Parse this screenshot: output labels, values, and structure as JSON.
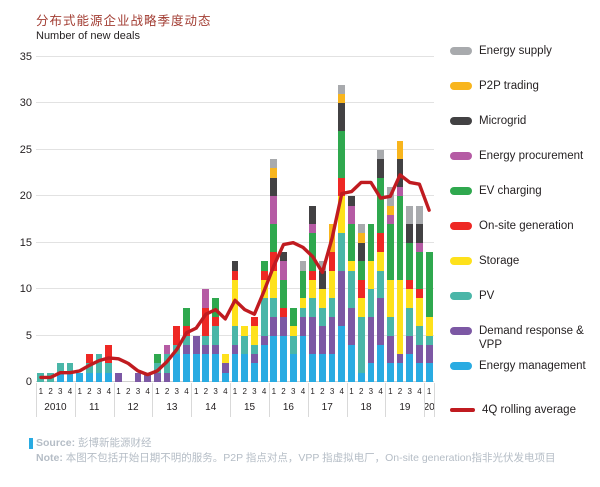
{
  "title": "分布式能源企业战略季度动态",
  "y_axis_title": "Number of new deals",
  "source": {
    "label": "Source:",
    "text": " 彭博新能源财经"
  },
  "note": {
    "label": "Note:",
    "text": " 本图不包括开始日期不明的服务。P2P 指点对点，VPP 指虚拟电厂，On-site generation指非光伏发电项目"
  },
  "legend": [
    {
      "id": "energy_supply",
      "label": "Energy supply",
      "color": "#a8aaad",
      "type": "box"
    },
    {
      "id": "p2p_trading",
      "label": "P2P trading",
      "color": "#f8b51d",
      "type": "box"
    },
    {
      "id": "microgrid",
      "label": "Microgrid",
      "color": "#424143",
      "type": "box"
    },
    {
      "id": "energy_procurement",
      "label": "Energy procurement",
      "color": "#b55ba4",
      "type": "box"
    },
    {
      "id": "ev_charging",
      "label": "EV charging",
      "color": "#2fa84e",
      "type": "box"
    },
    {
      "id": "onsite_generation",
      "label": "On-site generation",
      "color": "#ee2824",
      "type": "box"
    },
    {
      "id": "storage",
      "label": "Storage",
      "color": "#fee11b",
      "type": "box"
    },
    {
      "id": "pv",
      "label": "PV",
      "color": "#4ab6a8",
      "type": "box"
    },
    {
      "id": "demand_response_vpp",
      "label": "Demand response & VPP",
      "color": "#7c58a4",
      "type": "box"
    },
    {
      "id": "energy_management",
      "label": "Energy management",
      "color": "#29abe2",
      "type": "box"
    },
    {
      "id": "rolling_average",
      "label": "4Q rolling average",
      "color": "#c01b20",
      "type": "line"
    }
  ],
  "chart_data": {
    "type": "bar",
    "subtype": "stacked-with-line",
    "ylim": [
      0,
      35
    ],
    "yticks": [
      0,
      5,
      10,
      15,
      20,
      25,
      30,
      35
    ],
    "grid": "horizontal",
    "legend_position": "right",
    "quarter_tick_labels": [
      "1",
      "2",
      "3",
      "4"
    ],
    "x_groups": [
      {
        "label": "2010",
        "quarters": 4
      },
      {
        "label": "11",
        "quarters": 4
      },
      {
        "label": "12",
        "quarters": 4
      },
      {
        "label": "13",
        "quarters": 4
      },
      {
        "label": "14",
        "quarters": 4
      },
      {
        "label": "15",
        "quarters": 4
      },
      {
        "label": "16",
        "quarters": 4
      },
      {
        "label": "17",
        "quarters": 4
      },
      {
        "label": "18",
        "quarters": 4
      },
      {
        "label": "19",
        "quarters": 4
      },
      {
        "label": "20",
        "quarters": 1
      }
    ],
    "series": [
      {
        "id": "energy_management",
        "name": "Energy management",
        "color": "#29abe2",
        "values": [
          0,
          0,
          1,
          1,
          1,
          1,
          1,
          1,
          0,
          0,
          0,
          0,
          0,
          0,
          3,
          3,
          3,
          3,
          3,
          1,
          3,
          3,
          2,
          4,
          5,
          5,
          3,
          5,
          3,
          3,
          3,
          6,
          4,
          1,
          2,
          4,
          2,
          2,
          3,
          2,
          2
        ]
      },
      {
        "id": "demand_response_vpp",
        "name": "Demand response & VPP",
        "color": "#7c58a4",
        "values": [
          0,
          0,
          0,
          0,
          0,
          0,
          0,
          0,
          1,
          0,
          1,
          1,
          1,
          1,
          0,
          1,
          2,
          1,
          1,
          1,
          1,
          0,
          1,
          1,
          2,
          2,
          0,
          2,
          4,
          3,
          4,
          6,
          4,
          0,
          5,
          5,
          3,
          1,
          2,
          2,
          2
        ]
      },
      {
        "id": "pv",
        "name": "PV",
        "color": "#4ab6a8",
        "values": [
          1,
          1,
          1,
          1,
          0,
          1,
          2,
          1,
          0,
          0,
          0,
          0,
          1,
          2,
          1,
          1,
          0,
          1,
          2,
          0,
          2,
          2,
          1,
          4,
          2,
          0,
          2,
          1,
          2,
          2,
          2,
          4,
          4,
          6,
          3,
          3,
          2,
          0,
          3,
          2,
          1
        ]
      },
      {
        "id": "storage",
        "name": "Storage",
        "color": "#fee11b",
        "values": [
          0,
          0,
          0,
          0,
          0,
          0,
          0,
          0,
          0,
          0,
          0,
          0,
          0,
          0,
          0,
          0,
          0,
          0,
          0,
          1,
          5,
          1,
          2,
          2,
          3,
          0,
          1,
          1,
          2,
          2,
          3,
          4,
          1,
          2,
          3,
          2,
          4,
          8,
          2,
          3,
          2
        ]
      },
      {
        "id": "onsite_generation",
        "name": "On-site generation",
        "color": "#ee2824",
        "values": [
          0,
          0,
          0,
          0,
          0,
          1,
          0,
          2,
          0,
          0,
          0,
          0,
          0,
          0,
          2,
          1,
          0,
          3,
          1,
          0,
          1,
          0,
          1,
          1,
          2,
          1,
          0,
          0,
          1,
          0,
          2,
          2,
          0,
          2,
          0,
          2,
          0,
          0,
          1,
          1,
          0
        ]
      },
      {
        "id": "ev_charging",
        "name": "EV charging",
        "color": "#2fa84e",
        "values": [
          0,
          0,
          0,
          0,
          0,
          0,
          0,
          0,
          0,
          0,
          0,
          0,
          1,
          0,
          0,
          2,
          0,
          0,
          2,
          0,
          0,
          0,
          0,
          1,
          3,
          3,
          2,
          3,
          4,
          0,
          0,
          5,
          4,
          2,
          4,
          6,
          6,
          9,
          4,
          4,
          7
        ]
      },
      {
        "id": "energy_procurement",
        "name": "Energy procurement",
        "color": "#b55ba4",
        "values": [
          0,
          0,
          0,
          0,
          0,
          0,
          0,
          0,
          0,
          0,
          0,
          0,
          0,
          1,
          0,
          0,
          0,
          2,
          0,
          0,
          0,
          0,
          0,
          0,
          3,
          2,
          0,
          0,
          1,
          0,
          0,
          0,
          2,
          0,
          0,
          0,
          1,
          1,
          0,
          1,
          0
        ]
      },
      {
        "id": "microgrid",
        "name": "Microgrid",
        "color": "#424143",
        "values": [
          0,
          0,
          0,
          0,
          0,
          0,
          0,
          0,
          0,
          0,
          0,
          0,
          0,
          0,
          0,
          0,
          0,
          0,
          0,
          0,
          1,
          0,
          0,
          0,
          2,
          1,
          0,
          0,
          2,
          2,
          0,
          3,
          1,
          2,
          0,
          2,
          0,
          3,
          2,
          2,
          0
        ]
      },
      {
        "id": "p2p_trading",
        "name": "P2P trading",
        "color": "#f8b51d",
        "values": [
          0,
          0,
          0,
          0,
          0,
          0,
          0,
          0,
          0,
          0,
          0,
          0,
          0,
          0,
          0,
          0,
          0,
          0,
          0,
          0,
          0,
          0,
          0,
          0,
          1,
          0,
          0,
          0,
          0,
          0,
          3,
          1,
          0,
          1,
          0,
          0,
          1,
          2,
          0,
          0,
          0
        ]
      },
      {
        "id": "energy_supply",
        "name": "Energy supply",
        "color": "#a8aaad",
        "values": [
          0,
          0,
          0,
          0,
          0,
          0,
          0,
          0,
          0,
          0,
          0,
          0,
          0,
          0,
          0,
          0,
          0,
          0,
          0,
          0,
          0,
          0,
          0,
          0,
          1,
          0,
          0,
          1,
          0,
          1,
          0,
          1,
          0,
          1,
          0,
          1,
          2,
          0,
          2,
          2,
          0
        ]
      }
    ],
    "line_series": {
      "name": "4Q rolling average",
      "color": "#c01b20",
      "values": [
        0.5,
        0.5,
        1,
        1,
        1.2,
        1.8,
        2.3,
        2.6,
        2.5,
        2,
        1.2,
        0.8,
        1.2,
        2.2,
        3.5,
        5.3,
        5.8,
        7.3,
        7.8,
        6.8,
        8.8,
        7.8,
        7.3,
        9.8,
        12.5,
        14.8,
        15,
        14.5,
        13.5,
        11.8,
        15.5,
        20.3,
        20.5,
        21.5,
        21.5,
        19.8,
        20,
        22.3,
        21.5,
        21.3,
        18.5
      ]
    }
  }
}
